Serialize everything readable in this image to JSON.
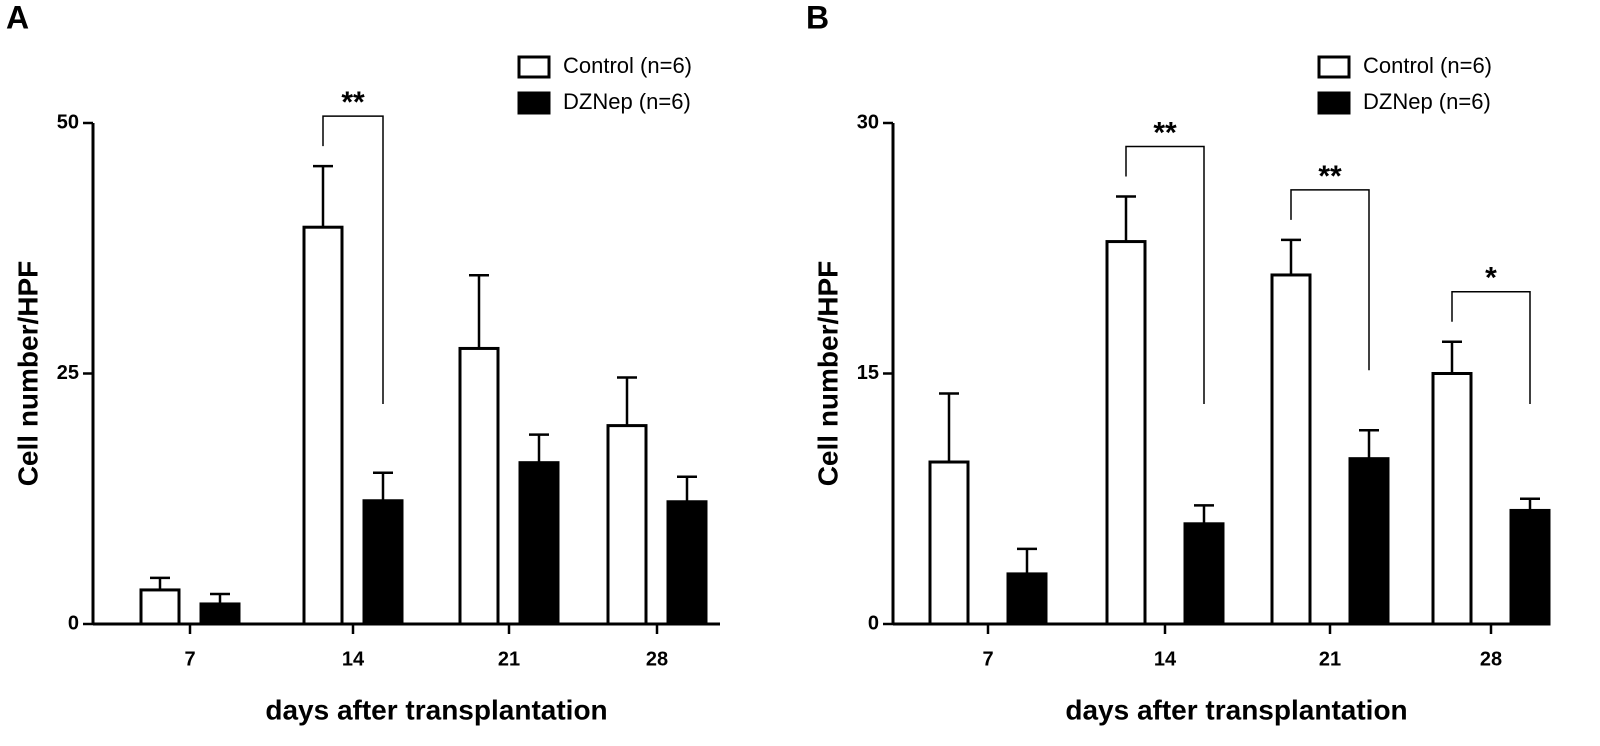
{
  "chart_data": [
    {
      "type": "bar",
      "panel": "A",
      "ylabel": "Cell number/HPF",
      "xlabel": "days after transplantation",
      "categories": [
        "7",
        "14",
        "21",
        "28"
      ],
      "series": [
        {
          "name": "Control (n=6)",
          "color": "#ffffff",
          "values": [
            3.4,
            39.6,
            27.5,
            19.8
          ],
          "errors": [
            1.2,
            6.1,
            7.3,
            4.8
          ]
        },
        {
          "name": "DZNep (n=6)",
          "color": "#000000",
          "values": [
            2.0,
            12.3,
            16.1,
            12.2
          ],
          "errors": [
            1.0,
            2.8,
            2.8,
            2.5
          ]
        }
      ],
      "significance": [
        null,
        "**",
        null,
        null
      ],
      "ylim": [
        0,
        50
      ],
      "yticks": [
        0,
        25,
        50
      ],
      "legend": "upper right"
    },
    {
      "type": "bar",
      "panel": "B",
      "ylabel": "Cell number/HPF",
      "xlabel": "days after transplantation",
      "categories": [
        "7",
        "14",
        "21",
        "28"
      ],
      "series": [
        {
          "name": "Control (n=6)",
          "color": "#ffffff",
          "values": [
            9.7,
            22.9,
            20.9,
            15.0
          ],
          "errors": [
            4.1,
            2.7,
            2.1,
            1.9
          ]
        },
        {
          "name": "DZNep (n=6)",
          "color": "#000000",
          "values": [
            3.0,
            6.0,
            9.9,
            6.8
          ],
          "errors": [
            1.5,
            1.1,
            1.7,
            0.7
          ]
        }
      ],
      "significance": [
        null,
        "**",
        "**",
        "*"
      ],
      "ylim": [
        0,
        30
      ],
      "yticks": [
        0,
        15,
        30
      ],
      "legend": "upper right"
    }
  ]
}
